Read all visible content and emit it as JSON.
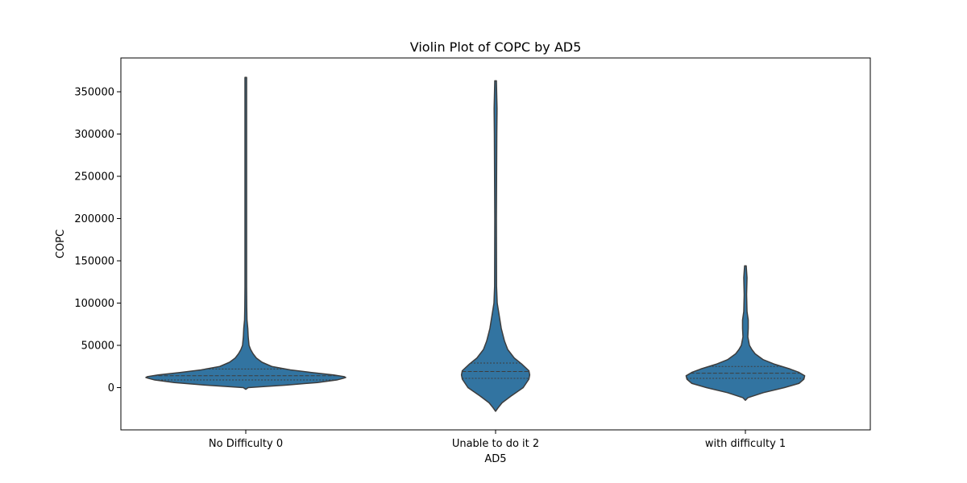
{
  "chart_data": {
    "type": "violin",
    "title": "Violin Plot of COPC by AD5",
    "xlabel": "AD5",
    "ylabel": "COPC",
    "categories": [
      "No Difficulty 0",
      "Unable to do it 2",
      "with difficulty 1"
    ],
    "y_ticks": [
      0,
      50000,
      100000,
      150000,
      200000,
      250000,
      300000,
      350000
    ],
    "y_tick_labels": [
      "0",
      "50000",
      "100000",
      "150000",
      "200000",
      "250000",
      "300000",
      "350000"
    ],
    "ylim": [
      -50000,
      390000
    ],
    "color": "#3274a1",
    "edge_color": "#3d3d3d",
    "grid": false,
    "violins": [
      {
        "category": "No Difficulty 0",
        "min": -2000,
        "max": 367000,
        "quartiles": {
          "q1": 9000,
          "median": 14000,
          "q3": 22000
        },
        "profile": [
          [
            -2000,
            0
          ],
          [
            0,
            3
          ],
          [
            3000,
            50
          ],
          [
            6000,
            88
          ],
          [
            9000,
            112
          ],
          [
            11000,
            120
          ],
          [
            12000,
            123
          ],
          [
            13000,
            121
          ],
          [
            15000,
            108
          ],
          [
            18000,
            80
          ],
          [
            21000,
            55
          ],
          [
            25000,
            32
          ],
          [
            30000,
            20
          ],
          [
            35000,
            13
          ],
          [
            40000,
            9
          ],
          [
            45000,
            6
          ],
          [
            50000,
            4
          ],
          [
            60000,
            3
          ],
          [
            70000,
            2.5
          ],
          [
            80000,
            1.5
          ],
          [
            95000,
            1.2
          ],
          [
            120000,
            1
          ],
          [
            367000,
            1
          ]
        ]
      },
      {
        "category": "Unable to do it 2",
        "min": -28000,
        "max": 363000,
        "quartiles": {
          "q1": 11000,
          "median": 19000,
          "q3": 29000
        },
        "profile": [
          [
            -28000,
            0
          ],
          [
            -24000,
            3
          ],
          [
            -18000,
            8
          ],
          [
            -10000,
            19
          ],
          [
            0,
            34
          ],
          [
            10000,
            41
          ],
          [
            15000,
            42
          ],
          [
            20000,
            41
          ],
          [
            28000,
            32
          ],
          [
            35000,
            23
          ],
          [
            45000,
            15
          ],
          [
            55000,
            11
          ],
          [
            70000,
            7
          ],
          [
            85000,
            4.5
          ],
          [
            100000,
            2
          ],
          [
            120000,
            1.2
          ],
          [
            200000,
            1
          ],
          [
            300000,
            1.5
          ],
          [
            330000,
            1.8
          ],
          [
            363000,
            1
          ]
        ]
      },
      {
        "category": "with difficulty 1",
        "min": -15000,
        "max": 144000,
        "quartiles": {
          "q1": 11000,
          "median": 17000,
          "q3": 25000
        },
        "profile": [
          [
            -15000,
            0
          ],
          [
            -12000,
            3
          ],
          [
            -6000,
            22
          ],
          [
            0,
            48
          ],
          [
            5000,
            66
          ],
          [
            10000,
            72
          ],
          [
            14000,
            73
          ],
          [
            18000,
            66
          ],
          [
            22000,
            55
          ],
          [
            28000,
            35
          ],
          [
            33000,
            22
          ],
          [
            40000,
            12
          ],
          [
            45000,
            8
          ],
          [
            50000,
            5
          ],
          [
            60000,
            3
          ],
          [
            70000,
            3.5
          ],
          [
            80000,
            3.5
          ],
          [
            90000,
            2
          ],
          [
            110000,
            1.5
          ],
          [
            130000,
            2
          ],
          [
            144000,
            1
          ]
        ]
      }
    ]
  }
}
